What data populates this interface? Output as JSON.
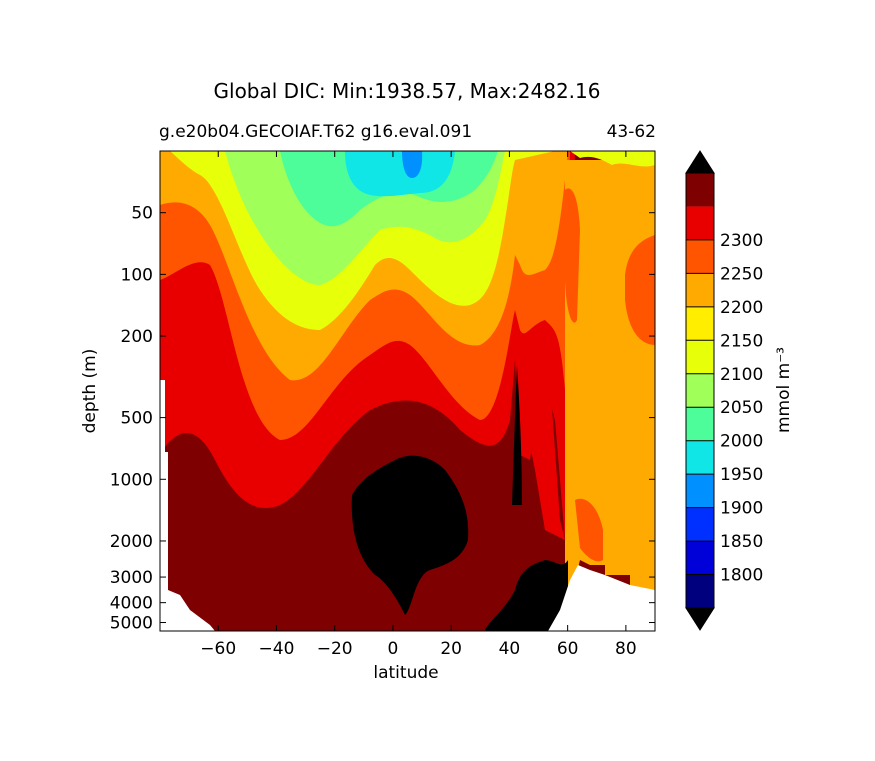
{
  "chart_data": {
    "type": "contour",
    "title": "Global DIC: Min:1938.57, Max:2482.16",
    "subtitle_left": "g.e20b04.GECOIAF.T62 g16.eval.091",
    "subtitle_right": "43-62",
    "xlabel": "latitude",
    "ylabel": "depth (m)",
    "xlim": [
      -80,
      90
    ],
    "x_ticks": [
      -60,
      -40,
      -20,
      0,
      20,
      40,
      60,
      80
    ],
    "x_tick_labels": [
      "−60",
      "−40",
      "−20",
      "0",
      "20",
      "40",
      "60",
      "80"
    ],
    "y_scale": "log (inverted)",
    "ylim": [
      5500,
      25
    ],
    "y_ticks": [
      50,
      100,
      200,
      500,
      1000,
      2000,
      3000,
      4000,
      5000
    ],
    "y_tick_labels": [
      "50",
      "100",
      "200",
      "500",
      "1000",
      "2000",
      "3000",
      "4000",
      "5000"
    ],
    "colorbar": {
      "label": "mmol m⁻³",
      "levels": [
        1800,
        1850,
        1900,
        1950,
        2000,
        2050,
        2100,
        2150,
        2200,
        2250,
        2300
      ],
      "level_labels": [
        "1800",
        "1850",
        "1900",
        "1950",
        "2000",
        "2050",
        "2100",
        "2150",
        "2200",
        "2250",
        "2300"
      ],
      "colors": [
        "#00007f",
        "#0000d8",
        "#0030ff",
        "#0090ff",
        "#10e6e6",
        "#4cfd9a",
        "#a0ff58",
        "#e8ff0a",
        "#ffee00",
        "#ffaa00",
        "#ff5500",
        "#e80000",
        "#7f0000"
      ],
      "extend": "both",
      "extend_low_color": "#000000",
      "extend_high_color": "#000000"
    },
    "contour_sections": [
      {
        "lat": -78,
        "boundaries": {
          "2300": 850,
          "2250": 230,
          "2200": 120,
          "2150": 40
        }
      },
      {
        "lat": -70,
        "boundaries": {
          "2300": 750,
          "2250": 190,
          "2200": 80,
          "2150": 35
        }
      },
      {
        "lat": -55,
        "boundaries": {
          "2300": 1300,
          "2250": 220,
          "2200": 80,
          "2150": 50
        }
      },
      {
        "lat": -40,
        "boundaries": {
          "2350": 2200,
          "2300": 2000,
          "2250": 600,
          "2200": 200,
          "2150": 110,
          "2100": 45
        }
      },
      {
        "lat": -20,
        "boundaries": {
          "2350": 2800,
          "2300": 850,
          "2250": 520,
          "2200": 320,
          "2150": 200,
          "2100": 150,
          "2050": 70,
          "2000": 40
        }
      },
      {
        "lat": 0,
        "boundaries": {
          "2350": 1200,
          "2300": 560,
          "2250": 280,
          "2200": 200,
          "2150": 140,
          "2100": 115,
          "2050": 90,
          "2000": 50,
          "1950": 30
        }
      },
      {
        "lat": 20,
        "boundaries": {
          "2350": 1500,
          "2300": 650,
          "2250": 240,
          "2200": 190,
          "2150": 150,
          "2100": 130,
          "2050": 95,
          "2000": 45
        }
      },
      {
        "lat": 35,
        "boundaries": {
          "2300": 900,
          "2250": 550,
          "2200": 350,
          "2150": 240,
          "2100": 110,
          "2050": 65
        }
      },
      {
        "lat": 42,
        "boundaries": {
          "2300": 320,
          "2250": 200,
          "2200": 150,
          "2150": 90,
          "2100": 40
        }
      },
      {
        "lat": 45,
        "boundaries": {
          "2300": 500,
          "2250": 170,
          "2200": 110,
          "2150": 30
        }
      },
      {
        "lat": 55,
        "boundaries": {
          "2300": 600,
          "2250": 200,
          "2200": 50
        }
      },
      {
        "lat": 65,
        "boundaries": {
          "2200": 30,
          "2150": 25
        }
      },
      {
        "lat": 85,
        "boundaries": {
          "2200": 30
        }
      }
    ]
  }
}
